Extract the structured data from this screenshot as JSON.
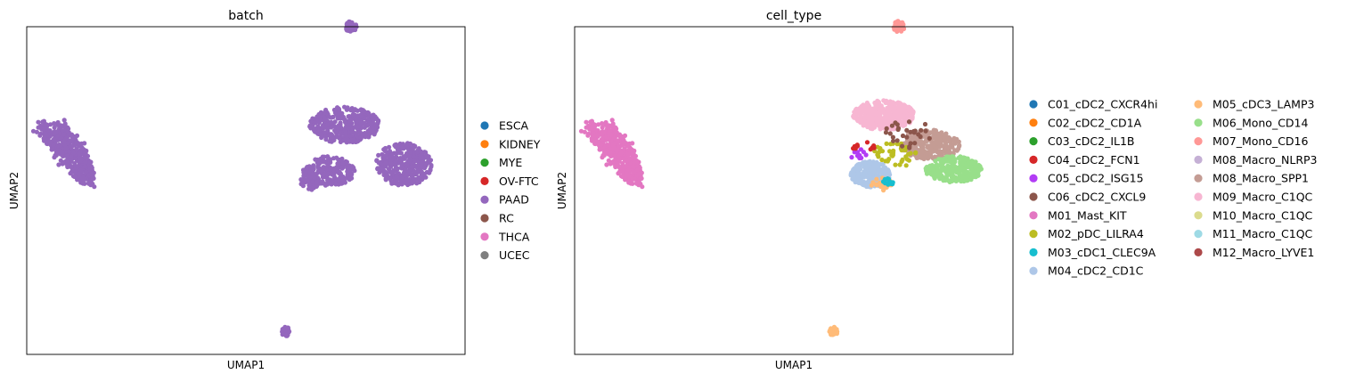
{
  "chart_data": [
    {
      "type": "scatter",
      "title": "batch",
      "xlabel": "UMAP1",
      "ylabel": "UMAP2",
      "xlim": [
        -6,
        14
      ],
      "ylim": [
        -8,
        12
      ],
      "xticks": false,
      "yticks": false,
      "grid": false,
      "legend_position": "right",
      "categories": [
        "ESCA",
        "KIDNEY",
        "MYE",
        "OV-FTC",
        "PAAD",
        "RC",
        "THCA",
        "UCEC"
      ],
      "colors": [
        "#1f77b4",
        "#ff7f0e",
        "#2ca02c",
        "#d62728",
        "#9467bd",
        "#8c564b",
        "#e377c2",
        "#7f7f7f"
      ],
      "clusters": [
        {
          "category": "PAAD",
          "shape": "band",
          "points": [
            [
              -5.0,
              6.0
            ],
            [
              -4.0,
              4.4
            ],
            [
              -3.2,
              2.5
            ]
          ],
          "width": [
            0.9,
            1.0,
            0.4
          ],
          "count": 420
        },
        {
          "category": "PAAD",
          "shape": "blob",
          "center": [
            8.5,
            6.0
          ],
          "radius": [
            1.6,
            1.1
          ],
          "count": 380
        },
        {
          "category": "PAAD",
          "shape": "blob",
          "center": [
            11.2,
            3.6
          ],
          "radius": [
            1.3,
            1.3
          ],
          "count": 320
        },
        {
          "category": "PAAD",
          "shape": "blob",
          "center": [
            7.8,
            3.2
          ],
          "radius": [
            1.2,
            0.9
          ],
          "count": 200
        },
        {
          "category": "PAAD",
          "shape": "blob",
          "center": [
            6.9,
            2.6
          ],
          "radius": [
            0.4,
            0.6
          ],
          "count": 60
        },
        {
          "category": "PAAD",
          "shape": "blob",
          "center": [
            8.8,
            12.0
          ],
          "radius": [
            0.25,
            0.35
          ],
          "count": 40
        },
        {
          "category": "PAAD",
          "shape": "blob",
          "center": [
            5.8,
            -6.6
          ],
          "radius": [
            0.2,
            0.3
          ],
          "count": 30
        }
      ]
    },
    {
      "type": "scatter",
      "title": "cell_type",
      "xlabel": "UMAP1",
      "ylabel": "UMAP2",
      "xlim": [
        -6,
        14
      ],
      "ylim": [
        -8,
        12
      ],
      "xticks": false,
      "yticks": false,
      "grid": false,
      "legend_position": "right",
      "categories": [
        "C01_cDC2_CXCR4hi",
        "C02_cDC2_CD1A",
        "C03_cDC2_IL1B",
        "C04_cDC2_FCN1",
        "C05_cDC2_ISG15",
        "C06_cDC2_CXCL9",
        "M01_Mast_KIT",
        "M02_pDC_LILRA4",
        "M03_cDC1_CLEC9A",
        "M04_cDC2_CD1C",
        "M05_cDC3_LAMP3",
        "M06_Mono_CD14",
        "M07_Mono_CD16",
        "M08_Macro_NLRP3",
        "M08_Macro_SPP1",
        "M09_Macro_C1QC",
        "M10_Macro_C1QC",
        "M11_Macro_C1QC",
        "M12_Macro_LYVE1"
      ],
      "colors": [
        "#1f77b4",
        "#ff7f0e",
        "#2ca02c",
        "#d62728",
        "#b23cf5",
        "#8c564b",
        "#e377c2",
        "#bcbd22",
        "#17becf",
        "#aec7e8",
        "#ffbb78",
        "#98df8a",
        "#ff9896",
        "#c5b0d5",
        "#c49c94",
        "#f7b6d2",
        "#dbdb8d",
        "#9edae5",
        "#ad494a"
      ],
      "clusters": [
        {
          "category": "M01_Mast_KIT",
          "shape": "band",
          "points": [
            [
              -5.0,
              6.0
            ],
            [
              -4.0,
              4.4
            ],
            [
              -3.2,
              2.5
            ]
          ],
          "width": [
            0.9,
            1.0,
            0.4
          ],
          "count": 420
        },
        {
          "category": "M09_Macro_C1QC",
          "shape": "blob",
          "center": [
            8.1,
            6.6
          ],
          "radius": [
            1.4,
            0.9
          ],
          "count": 420
        },
        {
          "category": "M08_Macro_SPP1",
          "shape": "blob",
          "center": [
            10.2,
            4.8
          ],
          "radius": [
            1.4,
            0.9
          ],
          "count": 240
        },
        {
          "category": "M06_Mono_CD14",
          "shape": "blob",
          "center": [
            11.3,
            3.3
          ],
          "radius": [
            1.3,
            0.8
          ],
          "count": 280
        },
        {
          "category": "M04_cDC2_CD1C",
          "shape": "blob",
          "center": [
            7.5,
            3.0
          ],
          "radius": [
            0.9,
            0.8
          ],
          "count": 220
        },
        {
          "category": "M05_cDC3_LAMP3",
          "shape": "blob",
          "center": [
            8.0,
            2.4
          ],
          "radius": [
            0.5,
            0.4
          ],
          "count": 25
        },
        {
          "category": "M03_cDC1_CLEC9A",
          "shape": "blob",
          "center": [
            8.3,
            2.5
          ],
          "radius": [
            0.25,
            0.25
          ],
          "count": 12
        },
        {
          "category": "M02_pDC_LILRA4",
          "shape": "blob",
          "center": [
            8.6,
            4.2
          ],
          "radius": [
            1.0,
            0.8
          ],
          "count": 40
        },
        {
          "category": "M07_Mono_CD16",
          "shape": "blob",
          "center": [
            8.8,
            12.0
          ],
          "radius": [
            0.25,
            0.35
          ],
          "count": 40
        },
        {
          "category": "M05_cDC3_LAMP3",
          "shape": "blob",
          "center": [
            5.8,
            -6.6
          ],
          "radius": [
            0.2,
            0.3
          ],
          "count": 30
        },
        {
          "category": "C05_cDC2_ISG15",
          "shape": "blob",
          "center": [
            7.0,
            4.2
          ],
          "radius": [
            0.4,
            0.4
          ],
          "count": 10
        },
        {
          "category": "C04_cDC2_FCN1",
          "shape": "blob",
          "center": [
            7.2,
            4.6
          ],
          "radius": [
            0.5,
            0.4
          ],
          "count": 10
        },
        {
          "category": "C06_cDC2_CXCL9",
          "shape": "blob",
          "center": [
            9.3,
            5.4
          ],
          "radius": [
            1.2,
            0.9
          ],
          "count": 30
        }
      ]
    }
  ]
}
